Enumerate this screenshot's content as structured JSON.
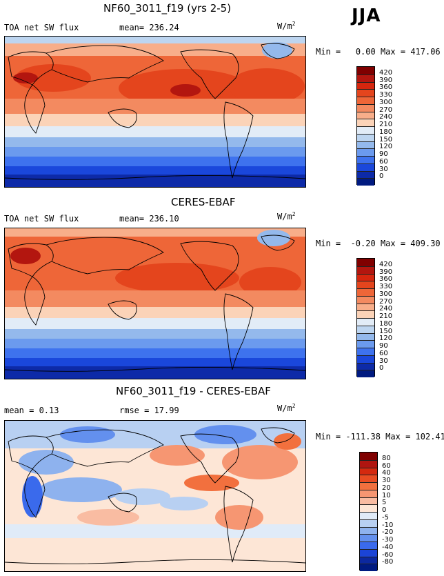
{
  "season": "JJA",
  "panels": [
    {
      "title": "NF60_3011_f19 (yrs 2-5)",
      "left_label": "TOA net SW flux",
      "stat_text": "mean=  236.24",
      "units": "W/m",
      "units_sup": "2",
      "min_label": "Min =",
      "min_value": "0.00",
      "max_label": "Max =",
      "max_value": "417.06",
      "colorbar_ticks": [
        "420",
        "390",
        "360",
        "330",
        "300",
        "270",
        "240",
        "210",
        "180",
        "150",
        "120",
        "90",
        "60",
        "30",
        "0"
      ],
      "colorbar_colors": [
        "#800000",
        "#b3160f",
        "#d6260e",
        "#e4451d",
        "#ee6638",
        "#f38a60",
        "#f8ae8a",
        "#fbd3b8",
        "#e2ecf7",
        "#bdd5f0",
        "#94b9ec",
        "#6b9aee",
        "#3e72ee",
        "#1a47db",
        "#0d2aa8",
        "#001a80"
      ]
    },
    {
      "title": "CERES-EBAF",
      "left_label": "TOA net SW flux",
      "stat_text": "mean=  236.10",
      "units": "W/m",
      "units_sup": "2",
      "min_label": "Min =",
      "min_value": "-0.20",
      "max_label": "Max =",
      "max_value": "409.30",
      "colorbar_ticks": [
        "420",
        "390",
        "360",
        "330",
        "300",
        "270",
        "240",
        "210",
        "180",
        "150",
        "120",
        "90",
        "60",
        "30",
        "0"
      ],
      "colorbar_colors": [
        "#800000",
        "#b3160f",
        "#d6260e",
        "#e4451d",
        "#ee6638",
        "#f38a60",
        "#f8ae8a",
        "#fbd3b8",
        "#e2ecf7",
        "#bdd5f0",
        "#94b9ec",
        "#6b9aee",
        "#3e72ee",
        "#1a47db",
        "#0d2aa8",
        "#001a80"
      ]
    },
    {
      "title": "NF60_3011_f19 - CERES-EBAF",
      "left_label": "mean =    0.13",
      "stat_text": "rmse =   17.99",
      "units": "W/m",
      "units_sup": "2",
      "min_label": "Min =",
      "min_value": "-111.38",
      "max_label": "Max =",
      "max_value": "102.41",
      "colorbar_ticks": [
        "80",
        "60",
        "40",
        "30",
        "20",
        "10",
        "5",
        "0",
        "-5",
        "-10",
        "-20",
        "-30",
        "-40",
        "-60",
        "-80"
      ],
      "colorbar_colors": [
        "#800000",
        "#b01510",
        "#d4290f",
        "#e84c22",
        "#f2703e",
        "#f69672",
        "#f9bca2",
        "#fde6d6",
        "#e0ebf8",
        "#b8d0f2",
        "#8eb2ee",
        "#6390ee",
        "#3a6aec",
        "#1b44d6",
        "#0c289f",
        "#001a80"
      ]
    }
  ],
  "chart_data": [
    {
      "type": "heatmap",
      "title": "NF60_3011_f19 (yrs 2-5)",
      "variable": "TOA net SW flux",
      "units": "W/m2",
      "mean": 236.24,
      "min": 0.0,
      "max": 417.06,
      "levels": [
        0,
        30,
        60,
        90,
        120,
        150,
        180,
        210,
        240,
        270,
        300,
        330,
        360,
        390,
        420
      ]
    },
    {
      "type": "heatmap",
      "title": "CERES-EBAF",
      "variable": "TOA net SW flux",
      "units": "W/m2",
      "mean": 236.1,
      "min": -0.2,
      "max": 409.3,
      "levels": [
        0,
        30,
        60,
        90,
        120,
        150,
        180,
        210,
        240,
        270,
        300,
        330,
        360,
        390,
        420
      ]
    },
    {
      "type": "heatmap",
      "title": "NF60_3011_f19 - CERES-EBAF",
      "units": "W/m2",
      "mean": 0.13,
      "rmse": 17.99,
      "min": -111.38,
      "max": 102.41,
      "levels": [
        -80,
        -60,
        -40,
        -30,
        -20,
        -10,
        -5,
        0,
        5,
        10,
        20,
        30,
        40,
        60,
        80
      ]
    }
  ]
}
